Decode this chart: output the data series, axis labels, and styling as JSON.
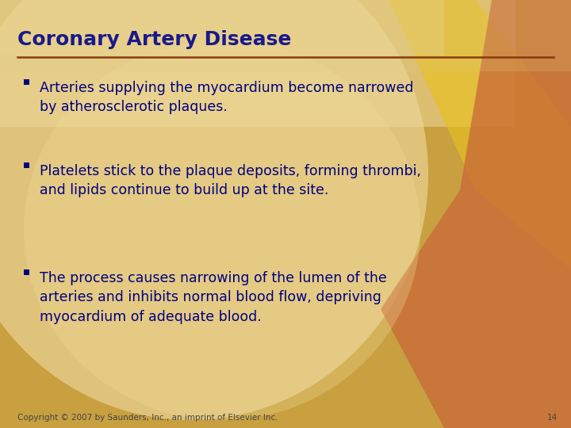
{
  "title": "Coronary Artery Disease",
  "title_color": "#1a1a8c",
  "title_fontsize": 18,
  "separator_color": "#8B3A0F",
  "text_color": "#000080",
  "bullet_marker_color": "#000080",
  "bullet_fontsize": 12.5,
  "bullets": [
    "Arteries supplying the myocardium become narrowed\nby atherosclerotic plaques.",
    "Platelets stick to the plaque deposits, forming thrombi,\nand lipids continue to build up at the site.",
    "The process causes narrowing of the lumen of the\narteries and inhibits normal blood flow, depriving\nmyocardium of adequate blood."
  ],
  "footer_text": "Copyright © 2007 by Saunders, Inc., an imprint of Elsevier Inc.",
  "footer_page": "14",
  "footer_color": "#444444",
  "footer_fontsize": 7.5,
  "figsize": [
    7.2,
    5.4
  ],
  "dpi": 100
}
